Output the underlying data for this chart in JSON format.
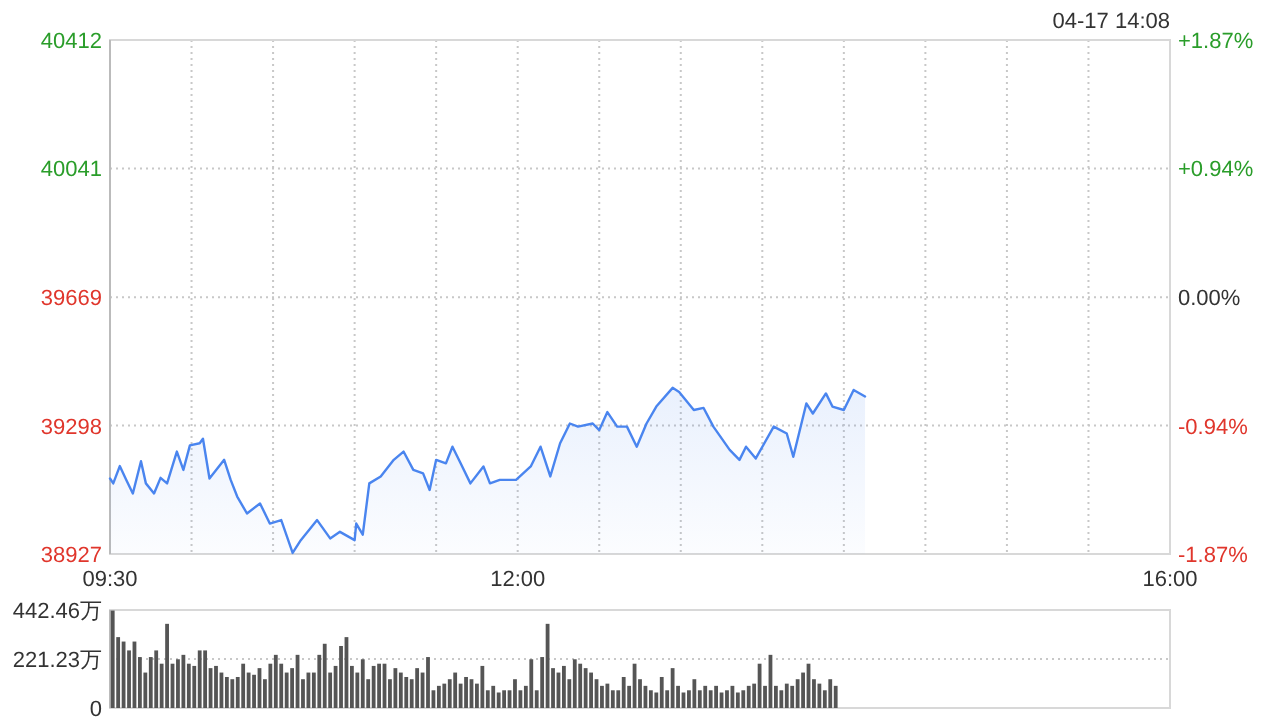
{
  "chart_data": [
    {
      "type": "area",
      "color": "#4a85ef",
      "x": [
        9.5,
        9.52,
        9.56,
        9.6,
        9.64,
        9.69,
        9.72,
        9.77,
        9.81,
        9.85,
        9.91,
        9.95,
        9.99,
        10.05,
        10.07,
        10.11,
        10.2,
        10.24,
        10.28,
        10.34,
        10.42,
        10.48,
        10.55,
        10.62,
        10.67,
        10.77,
        10.85,
        10.91,
        11.0,
        11.01,
        11.05,
        11.09,
        11.16,
        11.24,
        11.3,
        11.36,
        11.42,
        11.46,
        11.5,
        11.56,
        11.6,
        11.65,
        11.71,
        11.79,
        11.83,
        11.89,
        11.99,
        12.08,
        12.14,
        12.2,
        12.26,
        12.32,
        12.37,
        12.46,
        12.5,
        12.55,
        12.61,
        12.67,
        12.73,
        12.79,
        12.85,
        12.95,
        12.99,
        13.08,
        13.14,
        13.2,
        13.3,
        13.36,
        13.4,
        13.46,
        13.57,
        13.65,
        13.69,
        13.77,
        13.81,
        13.89,
        13.93,
        14.0,
        14.06,
        14.13
      ],
      "values": [
        39145,
        39131,
        39181,
        39141,
        39102,
        39195,
        39131,
        39102,
        39147,
        39131,
        39223,
        39170,
        39241,
        39247,
        39260,
        39145,
        39199,
        39141,
        39093,
        39044,
        39073,
        39015,
        39025,
        38930,
        38967,
        39025,
        38972,
        38991,
        38967,
        39015,
        38983,
        39131,
        39151,
        39199,
        39223,
        39170,
        39160,
        39112,
        39199,
        39189,
        39237,
        39189,
        39131,
        39180,
        39131,
        39141,
        39141,
        39180,
        39237,
        39151,
        39247,
        39304,
        39295,
        39304,
        39285,
        39337,
        39295,
        39295,
        39237,
        39304,
        39353,
        39407,
        39395,
        39343,
        39349,
        39295,
        39228,
        39199,
        39237,
        39203,
        39295,
        39275,
        39208,
        39362,
        39333,
        39391,
        39353,
        39343,
        39401,
        39382
      ],
      "xlim": [
        9.5,
        16
      ],
      "xticks": [
        {
          "value": 9.5,
          "label": "09:30"
        },
        {
          "value": 10,
          "label": null
        },
        {
          "value": 10.5,
          "label": null
        },
        {
          "value": 11,
          "label": null
        },
        {
          "value": 11.5,
          "label": null
        },
        {
          "value": 12,
          "label": "12:00"
        },
        {
          "value": 12.5,
          "label": null
        },
        {
          "value": 13,
          "label": null
        },
        {
          "value": 13.5,
          "label": null
        },
        {
          "value": 14,
          "label": null
        },
        {
          "value": 14.5,
          "label": null
        },
        {
          "value": 15,
          "label": null
        },
        {
          "value": 15.5,
          "label": null
        },
        {
          "value": 16,
          "label": "16:00"
        }
      ],
      "ylim": [
        38927,
        40412
      ],
      "yticks": [
        38927,
        39298,
        39669,
        40041,
        40412
      ],
      "y2lim": [
        -1.87,
        1.87
      ],
      "y2ticks": [
        {
          "value": -1.87,
          "label": "-1.87%"
        },
        {
          "value": -0.94,
          "label": "-0.94%"
        },
        {
          "value": 0,
          "label": "0.00%"
        },
        {
          "value": 0.94,
          "label": "+0.94%"
        },
        {
          "value": 1.87,
          "label": "+1.87%"
        }
      ],
      "grid": true,
      "annotations": [
        "04-17 14:08"
      ]
    },
    {
      "type": "bar",
      "color": "#555555",
      "categories": [
        null,
        null,
        null,
        null,
        null,
        null,
        null,
        null,
        null,
        null,
        null,
        null,
        null,
        null,
        null,
        null,
        null,
        null,
        null,
        null,
        null,
        null,
        null,
        null,
        null,
        null,
        null,
        null,
        null,
        null,
        null,
        null,
        null,
        null,
        null,
        null,
        null,
        null,
        null,
        null,
        null,
        null,
        null,
        null,
        null,
        null,
        null,
        null,
        null,
        null,
        null,
        null,
        null,
        null,
        null,
        null,
        null,
        null,
        null,
        null,
        null,
        null,
        null,
        null,
        null,
        null,
        null,
        null,
        null,
        null,
        null,
        null,
        null,
        null,
        null,
        null,
        null,
        null,
        null,
        null,
        null,
        null,
        null,
        null,
        null,
        null,
        null,
        null,
        null,
        null,
        null,
        null,
        null,
        null,
        null,
        null,
        null,
        null,
        null,
        null,
        null,
        null,
        null,
        null,
        null,
        null,
        null,
        null,
        null,
        null,
        null,
        null,
        null,
        null,
        null,
        null,
        null,
        null,
        null,
        null,
        null,
        null,
        null,
        null,
        null,
        null,
        null,
        null,
        null,
        null,
        null,
        null,
        null,
        null,
        null,
        null,
        null,
        null,
        null,
        null,
        null,
        null,
        null,
        null,
        null,
        null,
        null,
        null,
        null,
        null,
        null,
        null,
        null,
        null,
        null,
        null,
        null,
        null,
        null,
        null,
        null,
        null,
        null,
        null,
        null,
        null,
        null,
        null,
        null,
        null,
        null,
        null,
        null,
        null,
        null,
        null,
        null,
        null,
        null,
        null,
        null,
        null,
        null,
        null,
        null,
        null,
        null,
        null,
        null,
        null,
        null,
        null,
        null,
        null,
        null
      ],
      "values": [
        440,
        320,
        300,
        260,
        300,
        230,
        160,
        230,
        260,
        200,
        380,
        200,
        220,
        240,
        200,
        190,
        260,
        260,
        180,
        190,
        160,
        140,
        130,
        140,
        200,
        160,
        150,
        180,
        130,
        200,
        240,
        200,
        160,
        180,
        240,
        130,
        160,
        160,
        240,
        290,
        160,
        190,
        280,
        320,
        190,
        160,
        220,
        130,
        190,
        200,
        200,
        130,
        180,
        160,
        140,
        130,
        180,
        160,
        230,
        80,
        100,
        110,
        130,
        160,
        110,
        140,
        130,
        110,
        190,
        80,
        100,
        70,
        80,
        80,
        130,
        80,
        100,
        220,
        80,
        230,
        380,
        180,
        160,
        190,
        130,
        220,
        200,
        180,
        160,
        130,
        100,
        110,
        80,
        80,
        140,
        100,
        200,
        130,
        100,
        80,
        70,
        140,
        80,
        180,
        100,
        70,
        80,
        130,
        80,
        100,
        80,
        100,
        70,
        80,
        100,
        70,
        80,
        100,
        110,
        200,
        100,
        240,
        100,
        80,
        110,
        100,
        130,
        160,
        200,
        130,
        110,
        80,
        130,
        100,
        null,
        null,
        null,
        null,
        null,
        null,
        null,
        null,
        null,
        null,
        null,
        null,
        null,
        null,
        null,
        null,
        null,
        null,
        null,
        null,
        null,
        null,
        null,
        null,
        null,
        null,
        null,
        null,
        null,
        null,
        null,
        null,
        null,
        null,
        null,
        null,
        null,
        null,
        null,
        null,
        null,
        null,
        null,
        null,
        null,
        null,
        null,
        null,
        null,
        null,
        null,
        null,
        null,
        null,
        null,
        null,
        null,
        null,
        null,
        null,
        null
      ],
      "ylim": [
        0,
        442.46
      ],
      "yticks": [
        0,
        {
          "value": 221.23,
          "label": "221.23万"
        },
        {
          "value": 442.46,
          "label": "442.46万"
        }
      ],
      "grid": "y",
      "tick_labels": "y"
    }
  ]
}
